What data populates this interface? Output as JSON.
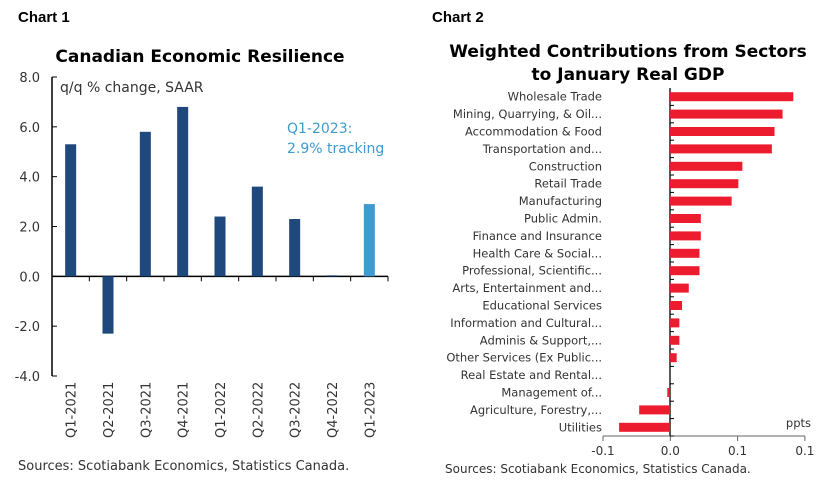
{
  "headers": {
    "chart1": "Chart 1",
    "chart2": "Chart 2"
  },
  "chart_data": [
    {
      "type": "bar",
      "title": "Canadian Economic Resilience",
      "subtitle": "q/q % change, SAAR",
      "annotation": [
        "Q1-2023:",
        "2.9% tracking"
      ],
      "categories": [
        "Q1-2021",
        "Q2-2021",
        "Q3-2021",
        "Q4-2021",
        "Q1-2022",
        "Q2-2022",
        "Q3-2022",
        "Q4-2022",
        "Q1-2023"
      ],
      "values": [
        5.3,
        -2.3,
        5.8,
        6.8,
        2.4,
        3.6,
        2.3,
        0.0,
        2.9
      ],
      "highlight_index": 8,
      "ylim": [
        -4,
        8
      ],
      "yticks": [
        "-4.0",
        "-2.0",
        "0.0",
        "2.0",
        "4.0",
        "6.0",
        "8.0"
      ],
      "colors": {
        "bar": "#1f497d",
        "highlight": "#3f9ad0"
      },
      "source": "Sources: Scotiabank Economics, Statistics Canada."
    },
    {
      "type": "bar",
      "orientation": "horizontal",
      "title": [
        "Weighted Contributions from Sectors",
        "to January Real GDP"
      ],
      "unit_label": "ppts",
      "categories": [
        "Wholesale Trade",
        "Mining, Quarrying, & Oil...",
        "Accommodation & Food",
        "Transportation and...",
        "Construction",
        "Retail Trade",
        "Manufacturing",
        "Public Admin.",
        "Finance and Insurance",
        "Health Care & Social...",
        "Professional, Scientific...",
        "Arts, Entertainment and...",
        "Educational Services",
        "Information and Cultural...",
        "Adminis & Support,...",
        "Other Services (Ex Public...",
        "Real Estate and Rental...",
        "Management of...",
        "Agriculture, Forestry,...",
        "Utilities"
      ],
      "values": [
        0.092,
        0.084,
        0.078,
        0.076,
        0.054,
        0.051,
        0.046,
        0.023,
        0.023,
        0.022,
        0.022,
        0.014,
        0.009,
        0.007,
        0.007,
        0.005,
        0.0,
        -0.002,
        -0.023,
        -0.038
      ],
      "xlim": [
        -0.05,
        0.1
      ],
      "xticks": [
        "-0.1",
        "0.0",
        "0.1",
        "0.1"
      ],
      "colors": {
        "bar": "#ec1c2e"
      },
      "source": "Sources: Scotiabank Economics, Statistics Canada."
    }
  ]
}
